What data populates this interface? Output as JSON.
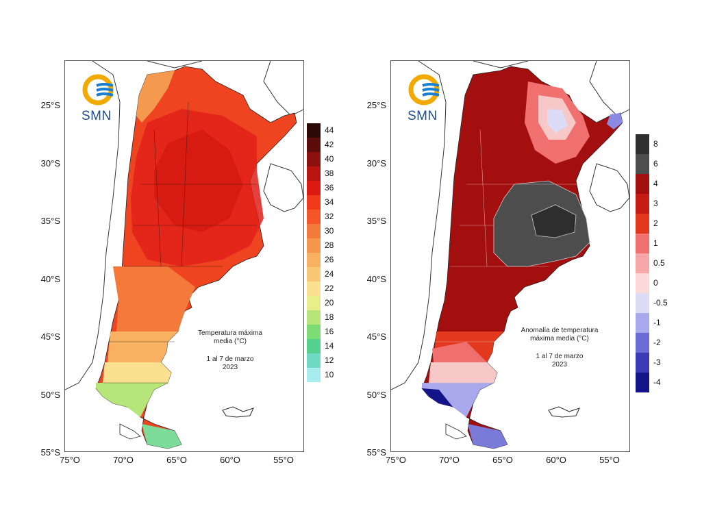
{
  "logo": {
    "text": "SMN"
  },
  "left_map": {
    "title_line1": "Temperatura máxima",
    "title_line2": "media (°C)",
    "period": "1 al 7 de marzo",
    "year": "2023",
    "lat_labels": [
      "25°S",
      "30°S",
      "35°S",
      "40°S",
      "45°S",
      "50°S",
      "55°S"
    ],
    "lon_labels": [
      "75°O",
      "70°O",
      "65°O",
      "60°O",
      "55°O"
    ],
    "legend_labels": [
      "44",
      "42",
      "40",
      "38",
      "36",
      "34",
      "32",
      "30",
      "28",
      "26",
      "24",
      "22",
      "20",
      "18",
      "16",
      "14",
      "12",
      "10"
    ],
    "legend_colors": [
      "#2b0a05",
      "#5a0d0a",
      "#8c110e",
      "#b81410",
      "#dc1a12",
      "#f03a1a",
      "#f4562a",
      "#f47a3c",
      "#f5974c",
      "#f7b160",
      "#f9c877",
      "#fae08f",
      "#e8ef8a",
      "#b6e67a",
      "#7edc77",
      "#56d08f",
      "#6fd9c3",
      "#a8ecf0"
    ]
  },
  "right_map": {
    "title_line1": "Anomalía de temperatura",
    "title_line2": "máxima media (°C)",
    "period": "1 al 7 de marzo",
    "year": "2023",
    "lat_labels": [
      "25°S",
      "30°S",
      "35°S",
      "40°S",
      "45°S",
      "50°S",
      "55°S"
    ],
    "lon_labels": [
      "75°O",
      "70°O",
      "65°O",
      "60°O",
      "55°O"
    ],
    "legend_labels": [
      "8",
      "6",
      "4",
      "3",
      "2",
      "1",
      "0.5",
      "0",
      "-0.5",
      "-1",
      "-2",
      "-3",
      "-4"
    ],
    "legend_colors": [
      "#2e2e2e",
      "#4d4d4d",
      "#a30f0f",
      "#c41b14",
      "#e2391e",
      "#f07070",
      "#f6a8a8",
      "#fbd9d9",
      "#dcdcf6",
      "#a8a8ec",
      "#6c6cd6",
      "#3a3ab4",
      "#14148a"
    ]
  }
}
